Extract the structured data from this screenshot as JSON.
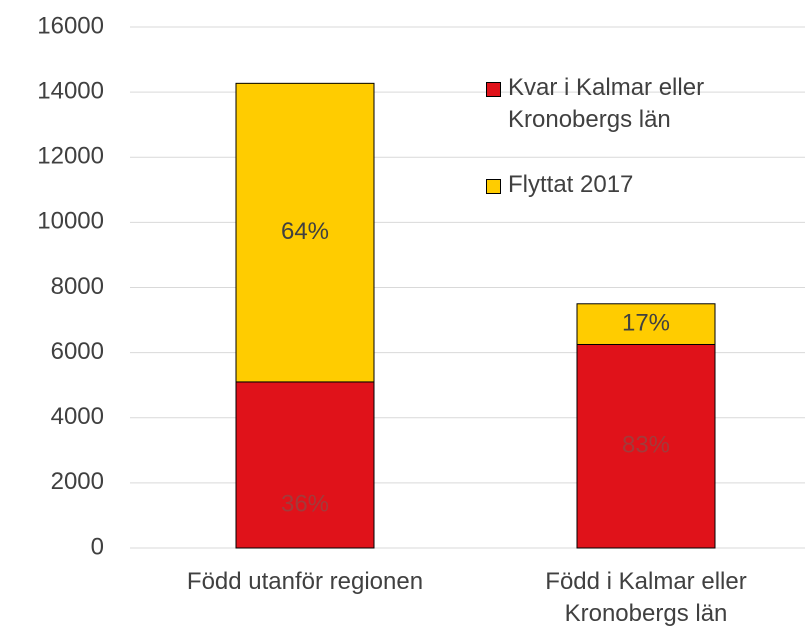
{
  "chart_data": {
    "type": "stacked_bar",
    "categories": [
      "Född utanför regionen",
      "Född i Kalmar eller Kronobergs län"
    ],
    "series": [
      {
        "name": "Kvar i Kalmar eller Kronobergs län",
        "color": "#e0121a",
        "values": [
          5100,
          6250
        ],
        "labels": [
          "36%",
          "83%"
        ],
        "label_color": "#a33a3a"
      },
      {
        "name": "Flyttat 2017",
        "color": "#ffcc00",
        "values": [
          9170,
          1250
        ],
        "labels": [
          "64%",
          "17%"
        ],
        "label_color": "#404040"
      }
    ],
    "ylim": [
      0,
      16000
    ],
    "yticks": [
      0,
      2000,
      4000,
      6000,
      8000,
      10000,
      12000,
      14000,
      16000
    ],
    "grid": true,
    "legend": "top-right"
  }
}
